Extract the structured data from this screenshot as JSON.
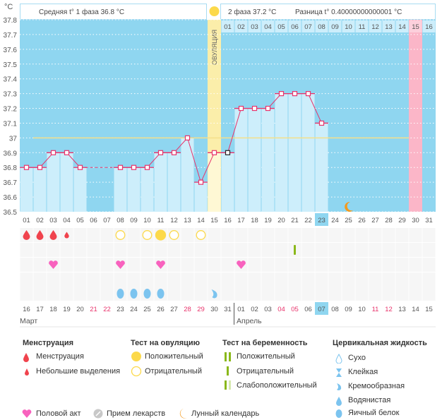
{
  "unit_label": "°C",
  "header": {
    "phase1": "Средняя t° 1 фаза 36.8 °C",
    "phase2": "2 фаза 37.2 °C",
    "diff": "Разница t° 0.40000000000001 °C",
    "ovulation": "ОВУЛЯЦИЯ"
  },
  "colors": {
    "bg": "#8fd6f0",
    "bar": "#cdeefb",
    "line": "#e8336b",
    "ovulation": "#fbeeaa",
    "pink": "#fbb6c8",
    "coverline": "#f5e08a"
  },
  "chart_data": {
    "type": "line",
    "title": "",
    "ylabel": "°C",
    "ylim": [
      36.5,
      37.8
    ],
    "yticks": [
      "37.8",
      "37.7",
      "37.6",
      "37.5",
      "37.4",
      "37.3",
      "37.2",
      "37.1",
      "37",
      "36.9",
      "36.8",
      "36.7",
      "36.6",
      "36.5"
    ],
    "x": [
      "01",
      "02",
      "03",
      "04",
      "05",
      "06",
      "07",
      "08",
      "09",
      "10",
      "11",
      "12",
      "13",
      "14",
      "15",
      "16",
      "17",
      "18",
      "19",
      "20",
      "21",
      "22",
      "23",
      "24",
      "25",
      "26",
      "27",
      "28",
      "29",
      "30",
      "31"
    ],
    "temps": [
      36.8,
      36.8,
      36.9,
      36.9,
      36.8,
      null,
      null,
      36.8,
      36.8,
      36.8,
      36.9,
      36.9,
      37.0,
      36.7,
      36.9,
      36.9,
      37.2,
      37.2,
      37.2,
      37.3,
      37.3,
      37.3,
      37.1,
      null,
      null,
      null,
      null,
      null,
      null,
      null,
      null
    ],
    "coverline": 37.0,
    "ovulation_day": 15,
    "highlight_day": 23,
    "pink_day": 30,
    "moon_day": 25,
    "cycle2_labels": [
      "01",
      "02",
      "03",
      "04",
      "05",
      "06",
      "07",
      "08",
      "09",
      "10",
      "11",
      "12",
      "13",
      "14",
      "15",
      "16"
    ],
    "cycle2_start": 16
  },
  "calendar": {
    "dates": [
      "16",
      "17",
      "18",
      "19",
      "20",
      "21",
      "22",
      "23",
      "24",
      "25",
      "26",
      "27",
      "28",
      "29",
      "30",
      "31",
      "01",
      "02",
      "03",
      "04",
      "05",
      "06",
      "07",
      "08",
      "09",
      "10",
      "11",
      "12",
      "13",
      "14",
      "15"
    ],
    "weekend": [
      6,
      7,
      13,
      14,
      20,
      21,
      27,
      28
    ],
    "today": 23,
    "months": [
      "Март",
      "Апрель"
    ]
  },
  "marks": {
    "menstruation": {
      "1": "full",
      "2": "full",
      "3": "full",
      "4": "small"
    },
    "ovulation_test": {
      "8": "neg",
      "10": "neg",
      "11": "pos",
      "12": "neg",
      "14": "neg"
    },
    "pregnancy_test": {
      "21": "neg"
    },
    "sex": [
      3,
      8,
      11,
      17
    ],
    "cervical": {
      "8": "egg",
      "9": "egg",
      "10": "egg",
      "11": "egg",
      "15": "creamy"
    }
  },
  "legend": {
    "menstruation": {
      "title": "Менструация",
      "items": [
        "Менструация",
        "Небольшие выделения"
      ]
    },
    "ovulation": {
      "title": "Тест на овуляцию",
      "items": [
        "Положительный",
        "Отрицательный"
      ]
    },
    "pregnancy": {
      "title": "Тест на беременность",
      "items": [
        "Положительный",
        "Отрицательный",
        "Слабоположительный"
      ]
    },
    "cervical": {
      "title": "Цервикальная жидкость",
      "items": [
        "Сухо",
        "Клейкая",
        "Кремообразная",
        "Водянистая",
        "Яичный белок"
      ]
    },
    "bottom": [
      "Половой акт",
      "Прием лекарств",
      "Лунный календарь"
    ]
  }
}
